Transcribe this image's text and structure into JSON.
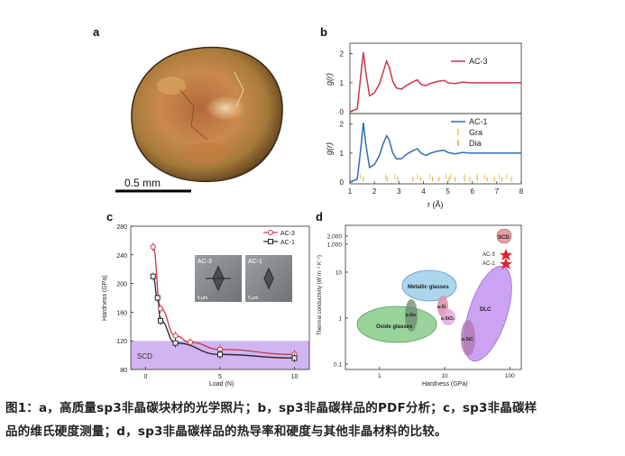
{
  "panels": {
    "a": {
      "label": "a",
      "scale_bar": "0.5 mm"
    },
    "b": {
      "label": "b",
      "top": {
        "legend": "AC-3",
        "ylabel": "g(r)",
        "yticks": [
          "2",
          "1",
          "0"
        ],
        "color": "#c8384a"
      },
      "bottom": {
        "legend": "AC-1",
        "legend_gra": "Gra",
        "legend_dia": "Dia",
        "ylabel": "g(r)",
        "yticks": [
          "2",
          "1",
          "0"
        ],
        "color": "#2f6db5",
        "marker_color": "#e6c54a"
      },
      "xlabel": "r (Å)",
      "xticks": [
        "1",
        "2",
        "3",
        "4",
        "5",
        "6",
        "7",
        "8"
      ]
    },
    "c": {
      "label": "c",
      "ylabel": "Hardness (GPa)",
      "xlabel": "Load (N)",
      "yticks": [
        "280",
        "240",
        "200",
        "160",
        "120",
        "80"
      ],
      "xticks": [
        "0",
        "5",
        "10"
      ],
      "legend": [
        "AC-3",
        "AC-1"
      ],
      "scd_label": "SCD",
      "inset_labels": [
        "AC-3",
        "AC-1"
      ],
      "inset_scale": "5 μm"
    },
    "d": {
      "label": "d",
      "ylabel": "Thermal conductivity (W m⁻¹ K⁻¹)",
      "xlabel": "Hardness (GPa)",
      "yticks": [
        "2,000",
        "1,000",
        "10",
        "1",
        "0.1"
      ],
      "xticks": [
        "1",
        "10",
        "100"
      ],
      "regions": {
        "scd": "SCD",
        "ac3": "AC-3",
        "ac1": "AC-1",
        "metallic": "Metallic glasses",
        "oxide": "Oxide glasses",
        "age": "a-Ge",
        "asi": "a-Si",
        "asio2": "a-SiO₂",
        "dlc": "DLC",
        "asic": "a-SiC"
      }
    }
  },
  "caption": {
    "line1": "图1：a，高质量sp3非晶碳块材的光学照片；b，sp3非晶碳样品的PDF分析；c，sp3非晶碳样",
    "line2": "品的维氏硬度测量；d，sp3非晶碳样品的热导率和硬度与其他非晶材料的比较。"
  },
  "chart_data": [
    {
      "type": "line",
      "title": "",
      "xlabel": "r (Å)",
      "ylabel": "g(r)",
      "xlim": [
        1,
        8
      ],
      "ylim": [
        0,
        2.3
      ],
      "series": [
        {
          "name": "AC-3",
          "x": [
            1.0,
            1.3,
            1.45,
            1.55,
            1.65,
            1.8,
            2.0,
            2.2,
            2.35,
            2.5,
            2.6,
            2.75,
            2.9,
            3.1,
            3.3,
            3.5,
            3.75,
            3.9,
            4.1,
            4.3,
            4.6,
            4.85,
            5.0,
            5.3,
            5.6,
            5.9,
            6.2,
            6.6,
            7.0,
            7.5,
            8.0
          ],
          "y": [
            0.0,
            0.1,
            1.3,
            2.05,
            1.35,
            0.55,
            0.65,
            0.95,
            1.35,
            1.75,
            1.55,
            1.05,
            0.82,
            0.78,
            0.9,
            1.0,
            1.1,
            0.95,
            0.9,
            0.98,
            1.05,
            1.08,
            1.0,
            0.97,
            1.02,
            1.0,
            1.0,
            1.0,
            1.0,
            1.0,
            1.0
          ]
        },
        {
          "name": "AC-1",
          "x": [
            1.0,
            1.3,
            1.45,
            1.55,
            1.65,
            1.8,
            2.0,
            2.2,
            2.35,
            2.5,
            2.6,
            2.75,
            2.9,
            3.1,
            3.3,
            3.5,
            3.75,
            3.9,
            4.1,
            4.3,
            4.6,
            4.85,
            5.0,
            5.3,
            5.6,
            5.9,
            6.2,
            6.6,
            7.0,
            7.5,
            8.0
          ],
          "y": [
            0.0,
            0.1,
            1.2,
            2.05,
            1.3,
            0.5,
            0.6,
            0.9,
            1.3,
            1.6,
            1.45,
            1.0,
            0.8,
            0.8,
            0.95,
            1.05,
            1.15,
            1.0,
            0.92,
            1.0,
            1.07,
            1.1,
            1.02,
            0.97,
            1.02,
            1.0,
            1.0,
            1.0,
            1.0,
            1.0,
            1.0
          ]
        }
      ],
      "markers": {
        "Gra": [
          1.42,
          2.46,
          2.84,
          3.76,
          4.26,
          4.92,
          5.12,
          5.68,
          6.2,
          6.5,
          7.1,
          7.4
        ],
        "Dia": [
          1.54,
          2.52,
          2.95,
          3.57,
          3.89,
          4.37,
          4.64,
          5.05,
          5.3,
          5.68,
          5.9,
          6.2,
          6.6,
          6.9,
          7.2,
          7.6
        ]
      }
    },
    {
      "type": "line",
      "title": "",
      "xlabel": "Load (N)",
      "ylabel": "Hardness (GPa)",
      "xlim": [
        -1,
        11
      ],
      "ylim": [
        80,
        280
      ],
      "series": [
        {
          "name": "AC-3",
          "x": [
            0.5,
            1.0,
            2.0,
            3.0,
            5.0,
            10.0
          ],
          "y": [
            251,
            165,
            127,
            118,
            108,
            101
          ]
        },
        {
          "name": "AC-1",
          "x": [
            0.5,
            0.8,
            1.0,
            2.0,
            5.0,
            10.0
          ],
          "y": [
            210,
            180,
            148,
            117,
            101,
            96
          ]
        }
      ],
      "band": {
        "name": "SCD",
        "y": [
          80,
          120
        ]
      }
    },
    {
      "type": "scatter",
      "title": "",
      "xlabel": "Hardness (GPa)",
      "ylabel": "Thermal conductivity (W m⁻¹ K⁻¹)",
      "xscale": "log",
      "yscale": "log",
      "xlim": [
        0.3,
        150
      ],
      "ylim": [
        0.08,
        3000
      ],
      "points": [
        {
          "name": "SCD",
          "x": 100,
          "y": 2200
        },
        {
          "name": "AC-3",
          "x": 100,
          "y": 26
        },
        {
          "name": "AC-1",
          "x": 100,
          "y": 17
        }
      ],
      "regions": [
        {
          "name": "Metallic glasses",
          "x": 5,
          "y": 5
        },
        {
          "name": "Oxide glasses",
          "x": 2,
          "y": 0.8
        },
        {
          "name": "a-Ge",
          "x": 3.5,
          "y": 0.95
        },
        {
          "name": "a-Si",
          "x": 11,
          "y": 1.5
        },
        {
          "name": "a-SiO₂",
          "x": 12,
          "y": 1.0
        },
        {
          "name": "DLC",
          "x": 55,
          "y": 2.0
        },
        {
          "name": "a-SiC",
          "x": 28,
          "y": 0.6
        }
      ]
    }
  ]
}
